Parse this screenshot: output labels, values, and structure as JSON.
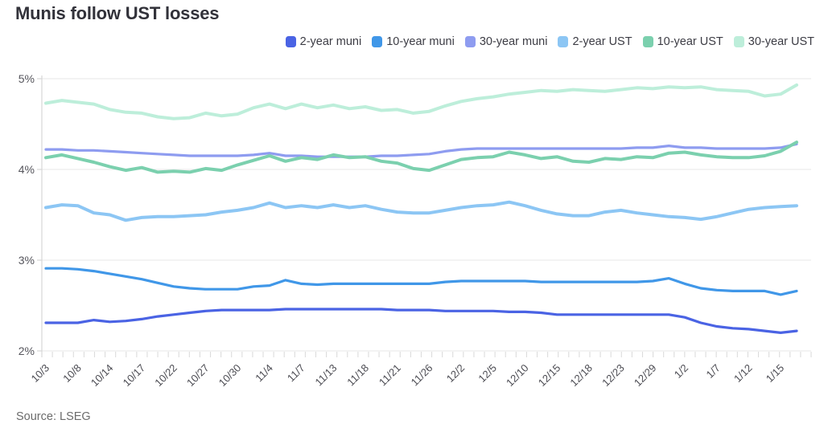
{
  "title": "Munis follow UST losses",
  "source": "Source: LSEG",
  "chart_data": {
    "type": "line",
    "title": "Munis follow UST losses",
    "legend_position": "top-right",
    "grid": "horizontal",
    "ylim": [
      2,
      5
    ],
    "y_ticks": [
      {
        "label": "5%",
        "value": 5
      },
      {
        "label": "4%",
        "value": 4
      },
      {
        "label": "3%",
        "value": 3
      },
      {
        "label": "2%",
        "value": 2
      }
    ],
    "x_labels": [
      "10/3",
      "10/8",
      "10/14",
      "10/17",
      "10/22",
      "10/27",
      "10/30",
      "11/4",
      "11/7",
      "11/13",
      "11/18",
      "11/21",
      "11/26",
      "12/2",
      "12/5",
      "12/10",
      "12/15",
      "12/18",
      "12/23",
      "12/29",
      "1/2",
      "1/7",
      "1/12",
      "1/15"
    ],
    "x_label_every": 2,
    "series": [
      {
        "name": "2-year muni",
        "color": "#4a63e4",
        "values": [
          2.31,
          2.31,
          2.31,
          2.34,
          2.32,
          2.33,
          2.35,
          2.38,
          2.4,
          2.42,
          2.44,
          2.45,
          2.45,
          2.45,
          2.45,
          2.46,
          2.46,
          2.46,
          2.46,
          2.46,
          2.46,
          2.46,
          2.45,
          2.45,
          2.45,
          2.44,
          2.44,
          2.44,
          2.44,
          2.43,
          2.43,
          2.42,
          2.4,
          2.4,
          2.4,
          2.4,
          2.4,
          2.4,
          2.4,
          2.4,
          2.37,
          2.31,
          2.27,
          2.25,
          2.24,
          2.22,
          2.2,
          2.22
        ]
      },
      {
        "name": "10-year muni",
        "color": "#4097e8",
        "values": [
          2.91,
          2.91,
          2.9,
          2.88,
          2.85,
          2.82,
          2.79,
          2.75,
          2.71,
          2.69,
          2.68,
          2.68,
          2.68,
          2.71,
          2.72,
          2.78,
          2.74,
          2.73,
          2.74,
          2.74,
          2.74,
          2.74,
          2.74,
          2.74,
          2.74,
          2.76,
          2.77,
          2.77,
          2.77,
          2.77,
          2.77,
          2.76,
          2.76,
          2.76,
          2.76,
          2.76,
          2.76,
          2.76,
          2.77,
          2.8,
          2.74,
          2.69,
          2.67,
          2.66,
          2.66,
          2.66,
          2.62,
          2.66
        ]
      },
      {
        "name": "30-year muni",
        "color": "#8e9cf0",
        "values": [
          4.22,
          4.22,
          4.21,
          4.21,
          4.2,
          4.19,
          4.18,
          4.17,
          4.16,
          4.15,
          4.15,
          4.15,
          4.15,
          4.16,
          4.18,
          4.15,
          4.15,
          4.14,
          4.14,
          4.14,
          4.14,
          4.15,
          4.15,
          4.16,
          4.17,
          4.2,
          4.22,
          4.23,
          4.23,
          4.23,
          4.23,
          4.23,
          4.23,
          4.23,
          4.23,
          4.23,
          4.23,
          4.24,
          4.24,
          4.26,
          4.24,
          4.24,
          4.23,
          4.23,
          4.23,
          4.23,
          4.24,
          4.28
        ]
      },
      {
        "name": "2-year UST",
        "color": "#8cc6f4",
        "values": [
          3.58,
          3.61,
          3.6,
          3.52,
          3.5,
          3.44,
          3.47,
          3.48,
          3.48,
          3.49,
          3.5,
          3.53,
          3.55,
          3.58,
          3.63,
          3.58,
          3.6,
          3.58,
          3.61,
          3.58,
          3.6,
          3.56,
          3.53,
          3.52,
          3.52,
          3.55,
          3.58,
          3.6,
          3.61,
          3.64,
          3.6,
          3.55,
          3.51,
          3.49,
          3.49,
          3.53,
          3.55,
          3.52,
          3.5,
          3.48,
          3.47,
          3.45,
          3.48,
          3.52,
          3.56,
          3.58,
          3.59,
          3.6
        ]
      },
      {
        "name": "10-year UST",
        "color": "#7bd0ae",
        "values": [
          4.13,
          4.16,
          4.12,
          4.08,
          4.03,
          3.99,
          4.02,
          3.97,
          3.98,
          3.97,
          4.01,
          3.99,
          4.05,
          4.1,
          4.15,
          4.09,
          4.13,
          4.11,
          4.16,
          4.13,
          4.14,
          4.09,
          4.07,
          4.01,
          3.99,
          4.05,
          4.11,
          4.13,
          4.14,
          4.19,
          4.16,
          4.12,
          4.14,
          4.09,
          4.08,
          4.12,
          4.11,
          4.14,
          4.13,
          4.18,
          4.19,
          4.16,
          4.14,
          4.13,
          4.13,
          4.15,
          4.2,
          4.3
        ]
      },
      {
        "name": "30-year UST",
        "color": "#bdeeda",
        "values": [
          4.73,
          4.76,
          4.74,
          4.72,
          4.66,
          4.63,
          4.62,
          4.58,
          4.56,
          4.57,
          4.62,
          4.59,
          4.61,
          4.68,
          4.72,
          4.67,
          4.72,
          4.68,
          4.71,
          4.67,
          4.69,
          4.65,
          4.66,
          4.62,
          4.64,
          4.7,
          4.75,
          4.78,
          4.8,
          4.83,
          4.85,
          4.87,
          4.86,
          4.88,
          4.87,
          4.86,
          4.88,
          4.9,
          4.89,
          4.91,
          4.9,
          4.91,
          4.88,
          4.87,
          4.86,
          4.81,
          4.83,
          4.93
        ]
      }
    ]
  }
}
